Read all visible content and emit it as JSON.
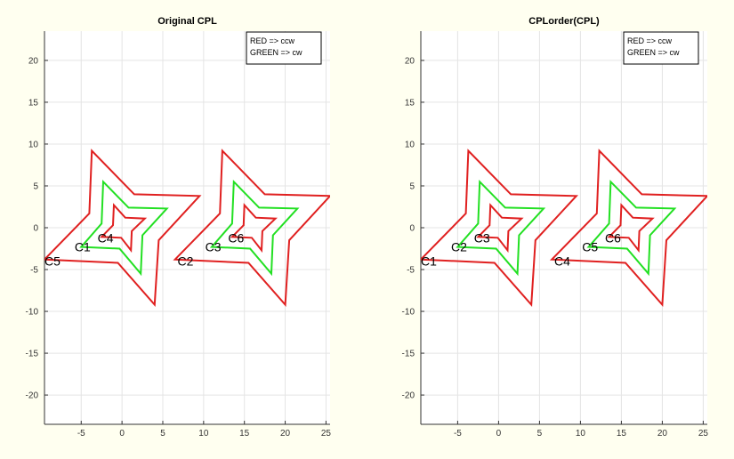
{
  "figure": {
    "background": "#fffff0",
    "colors": {
      "red": "#e02020",
      "green": "#22e022",
      "grid": "#e4e4e4",
      "axis": "#333333"
    }
  },
  "chart_data": [
    {
      "type": "line",
      "title": "Original CPL",
      "xlim": [
        -9.5,
        25.5
      ],
      "ylim": [
        -23.5,
        23.5
      ],
      "xticks": [
        -5,
        0,
        5,
        10,
        15,
        20,
        25
      ],
      "yticks": [
        -20,
        -15,
        -10,
        -5,
        0,
        5,
        10,
        15,
        20
      ],
      "grid": true,
      "legend": {
        "location": "top-right",
        "entries": [
          "RED => ccw",
          "GREEN => cw"
        ]
      },
      "series": [
        {
          "color": "#e02020",
          "points": [
            [
              -4,
              1.7
            ],
            [
              -3.7,
              9.2
            ],
            [
              1.5,
              4
            ],
            [
              9.5,
              3.8
            ],
            [
              4.5,
              -1.5
            ],
            [
              4,
              -9.2
            ],
            [
              -0.5,
              -4.2
            ],
            [
              -9.5,
              -3.8
            ]
          ]
        },
        {
          "color": "#22e022",
          "points": [
            [
              -2.5,
              0.5
            ],
            [
              -2.3,
              5.5
            ],
            [
              0.8,
              2.4
            ],
            [
              5.5,
              2.3
            ],
            [
              2.5,
              -0.9
            ],
            [
              2.3,
              -5.5
            ],
            [
              -0.3,
              -2.5
            ],
            [
              -5,
              -2.3
            ]
          ]
        },
        {
          "color": "#e02020",
          "points": [
            [
              -1.1,
              0.3
            ],
            [
              -1,
              2.7
            ],
            [
              0.4,
              1.2
            ],
            [
              2.8,
              1.1
            ],
            [
              1.2,
              -0.4
            ],
            [
              1.1,
              -2.7
            ],
            [
              -0.1,
              -1.2
            ],
            [
              -2.5,
              -1.1
            ]
          ]
        },
        {
          "color": "#e02020",
          "points": [
            [
              12,
              1.7
            ],
            [
              12.3,
              9.2
            ],
            [
              17.5,
              4
            ],
            [
              25.5,
              3.8
            ],
            [
              20.5,
              -1.5
            ],
            [
              20,
              -9.2
            ],
            [
              15.5,
              -4.2
            ],
            [
              6.5,
              -3.8
            ]
          ]
        },
        {
          "color": "#22e022",
          "points": [
            [
              13.5,
              0.5
            ],
            [
              13.7,
              5.5
            ],
            [
              16.8,
              2.4
            ],
            [
              21.5,
              2.3
            ],
            [
              18.5,
              -0.9
            ],
            [
              18.3,
              -5.5
            ],
            [
              15.7,
              -2.5
            ],
            [
              11,
              -2.3
            ]
          ]
        },
        {
          "color": "#e02020",
          "points": [
            [
              14.9,
              0.3
            ],
            [
              15,
              2.7
            ],
            [
              16.4,
              1.2
            ],
            [
              18.8,
              1.1
            ],
            [
              17.2,
              -0.4
            ],
            [
              17.1,
              -2.7
            ],
            [
              15.9,
              -1.2
            ],
            [
              13.5,
              -1.1
            ]
          ]
        }
      ],
      "annotations": [
        {
          "text": "C1",
          "x": -5.8,
          "y": -2.3
        },
        {
          "text": "C4",
          "x": -3.0,
          "y": -1.2
        },
        {
          "text": "C5",
          "x": -9.5,
          "y": -4.0
        },
        {
          "text": "C2",
          "x": 6.8,
          "y": -4.0
        },
        {
          "text": "C3",
          "x": 10.2,
          "y": -2.3
        },
        {
          "text": "C6",
          "x": 13.0,
          "y": -1.2
        }
      ]
    },
    {
      "type": "line",
      "title": "CPLorder(CPL)",
      "xlim": [
        -9.5,
        25.5
      ],
      "ylim": [
        -23.5,
        23.5
      ],
      "xticks": [
        -5,
        0,
        5,
        10,
        15,
        20,
        25
      ],
      "yticks": [
        -20,
        -15,
        -10,
        -5,
        0,
        5,
        10,
        15,
        20
      ],
      "grid": true,
      "legend": {
        "location": "top-right",
        "entries": [
          "RED => ccw",
          "GREEN => cw"
        ]
      },
      "series": [
        {
          "color": "#e02020",
          "points": [
            [
              -4,
              1.7
            ],
            [
              -3.7,
              9.2
            ],
            [
              1.5,
              4
            ],
            [
              9.5,
              3.8
            ],
            [
              4.5,
              -1.5
            ],
            [
              4,
              -9.2
            ],
            [
              -0.5,
              -4.2
            ],
            [
              -9.5,
              -3.8
            ]
          ]
        },
        {
          "color": "#22e022",
          "points": [
            [
              -2.5,
              0.5
            ],
            [
              -2.3,
              5.5
            ],
            [
              0.8,
              2.4
            ],
            [
              5.5,
              2.3
            ],
            [
              2.5,
              -0.9
            ],
            [
              2.3,
              -5.5
            ],
            [
              -0.3,
              -2.5
            ],
            [
              -5,
              -2.3
            ]
          ]
        },
        {
          "color": "#e02020",
          "points": [
            [
              -1.1,
              0.3
            ],
            [
              -1,
              2.7
            ],
            [
              0.4,
              1.2
            ],
            [
              2.8,
              1.1
            ],
            [
              1.2,
              -0.4
            ],
            [
              1.1,
              -2.7
            ],
            [
              -0.1,
              -1.2
            ],
            [
              -2.5,
              -1.1
            ]
          ]
        },
        {
          "color": "#e02020",
          "points": [
            [
              12,
              1.7
            ],
            [
              12.3,
              9.2
            ],
            [
              17.5,
              4
            ],
            [
              25.5,
              3.8
            ],
            [
              20.5,
              -1.5
            ],
            [
              20,
              -9.2
            ],
            [
              15.5,
              -4.2
            ],
            [
              6.5,
              -3.8
            ]
          ]
        },
        {
          "color": "#22e022",
          "points": [
            [
              13.5,
              0.5
            ],
            [
              13.7,
              5.5
            ],
            [
              16.8,
              2.4
            ],
            [
              21.5,
              2.3
            ],
            [
              18.5,
              -0.9
            ],
            [
              18.3,
              -5.5
            ],
            [
              15.7,
              -2.5
            ],
            [
              11,
              -2.3
            ]
          ]
        },
        {
          "color": "#e02020",
          "points": [
            [
              14.9,
              0.3
            ],
            [
              15,
              2.7
            ],
            [
              16.4,
              1.2
            ],
            [
              18.8,
              1.1
            ],
            [
              17.2,
              -0.4
            ],
            [
              17.1,
              -2.7
            ],
            [
              15.9,
              -1.2
            ],
            [
              13.5,
              -1.1
            ]
          ]
        }
      ],
      "annotations": [
        {
          "text": "C2",
          "x": -5.8,
          "y": -2.3
        },
        {
          "text": "C3",
          "x": -3.0,
          "y": -1.2
        },
        {
          "text": "C1",
          "x": -9.5,
          "y": -4.0
        },
        {
          "text": "C4",
          "x": 6.8,
          "y": -4.0
        },
        {
          "text": "C5",
          "x": 10.2,
          "y": -2.3
        },
        {
          "text": "C6",
          "x": 13.0,
          "y": -1.2
        }
      ]
    }
  ]
}
